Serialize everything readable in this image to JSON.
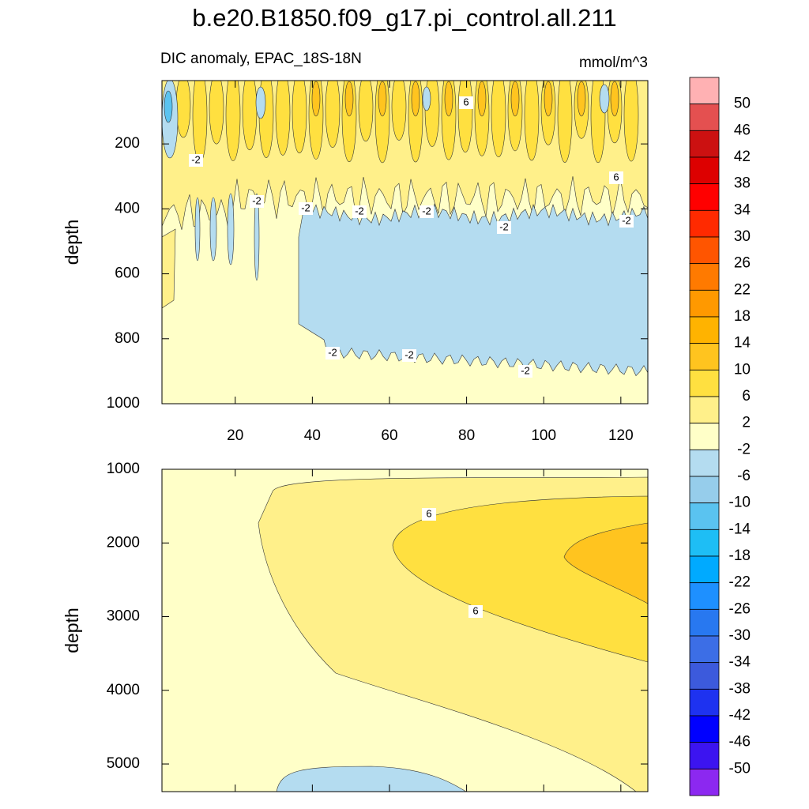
{
  "chart_data": {
    "type": "contour",
    "title": "b.e20.B1850.f09_g17.pi_control.all.211",
    "subtitle": "DIC anomaly, EPAC_18S-18N",
    "units": "mmol/m^3",
    "panels": [
      {
        "ylabel": "depth",
        "xlim": [
          1,
          127
        ],
        "ylim": [
          5,
          1000
        ],
        "y_reversed": true,
        "xticks": [
          20,
          40,
          60,
          80,
          100,
          120
        ],
        "yticks": [
          200,
          400,
          600,
          800,
          1000
        ],
        "show_xtick_labels": true,
        "contour_labels": [
          6,
          -2,
          -2,
          -2,
          -2,
          -2,
          -2,
          6,
          -2,
          -2,
          -2,
          -2
        ]
      },
      {
        "ylabel": "depth",
        "xlim": [
          1,
          127
        ],
        "ylim": [
          1000,
          5375
        ],
        "y_reversed": true,
        "xticks": [
          20,
          40,
          60,
          80,
          100,
          120
        ],
        "yticks": [
          1000,
          2000,
          3000,
          4000,
          5000
        ],
        "show_xtick_labels": false,
        "contour_labels": [
          6,
          6
        ]
      }
    ],
    "colorbar": {
      "levels": [
        50,
        46,
        42,
        38,
        34,
        30,
        26,
        22,
        18,
        14,
        10,
        6,
        2,
        -2,
        -6,
        -10,
        -14,
        -18,
        -22,
        -26,
        -30,
        -34,
        -38,
        -42,
        -46,
        -50
      ],
      "colors": [
        "#ffb1b3",
        "#e45050",
        "#cc1111",
        "#dd0000",
        "#ff0000",
        "#ff2a00",
        "#ff5500",
        "#ff7a00",
        "#ff9900",
        "#ffb300",
        "#ffc41f",
        "#ffe040",
        "#fff08a",
        "#ffffc8",
        "#b4dcf0",
        "#96cdeb",
        "#5ac3f0",
        "#1ebef5",
        "#00aaff",
        "#1e90ff",
        "#2878f0",
        "#3c6ee6",
        "#3c5adc",
        "#1e32f0",
        "#0000ff",
        "#3c14f0",
        "#8c28f0"
      ]
    }
  }
}
